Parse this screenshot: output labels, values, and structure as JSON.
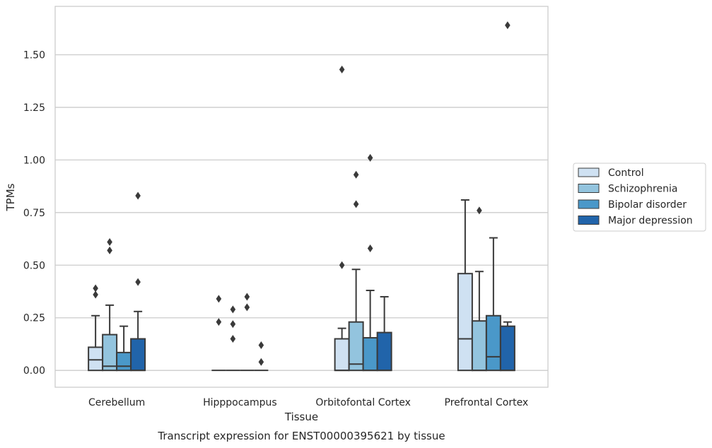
{
  "chart_data": {
    "type": "box",
    "caption": "Transcript expression for ENST00000395621 by tissue",
    "xlabel": "Tissue",
    "ylabel": "TPMs",
    "ylim": [
      -0.08,
      1.73
    ],
    "yticks": [
      0.0,
      0.25,
      0.5,
      0.75,
      1.0,
      1.25,
      1.5
    ],
    "ytick_labels": [
      "0.00",
      "0.25",
      "0.50",
      "0.75",
      "1.00",
      "1.25",
      "1.50"
    ],
    "grid": "horizontal",
    "legend_position": "right",
    "categories": [
      "Cerebellum",
      "Hipppocampus",
      "Orbitofontal Cortex",
      "Prefrontal Cortex"
    ],
    "series": [
      {
        "name": "Control",
        "color": "#cfe1f2",
        "boxes": [
          {
            "whisker_low": 0.0,
            "q1": 0.0,
            "median": 0.05,
            "q3": 0.11,
            "whisker_high": 0.26,
            "outliers": [
              0.36,
              0.39
            ]
          },
          {
            "whisker_low": 0.0,
            "q1": 0.0,
            "median": 0.0,
            "q3": 0.0,
            "whisker_high": 0.0,
            "outliers": [
              0.23,
              0.34
            ]
          },
          {
            "whisker_low": 0.0,
            "q1": 0.0,
            "median": 0.0,
            "q3": 0.15,
            "whisker_high": 0.2,
            "outliers": [
              0.5,
              1.43
            ]
          },
          {
            "whisker_low": 0.0,
            "q1": 0.0,
            "median": 0.15,
            "q3": 0.46,
            "whisker_high": 0.81,
            "outliers": []
          }
        ]
      },
      {
        "name": "Schizophrenia",
        "color": "#93c4de",
        "boxes": [
          {
            "whisker_low": 0.0,
            "q1": 0.0,
            "median": 0.02,
            "q3": 0.17,
            "whisker_high": 0.31,
            "outliers": [
              0.57,
              0.61
            ]
          },
          {
            "whisker_low": 0.0,
            "q1": 0.0,
            "median": 0.0,
            "q3": 0.0,
            "whisker_high": 0.0,
            "outliers": [
              0.15,
              0.22,
              0.29
            ]
          },
          {
            "whisker_low": 0.0,
            "q1": 0.0,
            "median": 0.03,
            "q3": 0.23,
            "whisker_high": 0.48,
            "outliers": [
              0.79,
              0.93
            ]
          },
          {
            "whisker_low": 0.0,
            "q1": 0.0,
            "median": 0.0,
            "q3": 0.235,
            "whisker_high": 0.47,
            "outliers": [
              0.76
            ]
          }
        ]
      },
      {
        "name": "Bipolar disorder",
        "color": "#4a98c9",
        "boxes": [
          {
            "whisker_low": 0.0,
            "q1": 0.0,
            "median": 0.02,
            "q3": 0.085,
            "whisker_high": 0.21,
            "outliers": []
          },
          {
            "whisker_low": 0.0,
            "q1": 0.0,
            "median": 0.0,
            "q3": 0.0,
            "whisker_high": 0.0,
            "outliers": [
              0.3,
              0.35
            ]
          },
          {
            "whisker_low": 0.0,
            "q1": 0.0,
            "median": 0.0,
            "q3": 0.155,
            "whisker_high": 0.38,
            "outliers": [
              0.58,
              1.01
            ]
          },
          {
            "whisker_low": 0.0,
            "q1": 0.0,
            "median": 0.065,
            "q3": 0.26,
            "whisker_high": 0.63,
            "outliers": []
          }
        ]
      },
      {
        "name": "Major depression",
        "color": "#2164aa",
        "boxes": [
          {
            "whisker_low": 0.0,
            "q1": 0.0,
            "median": 0.0,
            "q3": 0.15,
            "whisker_high": 0.28,
            "outliers": [
              0.42,
              0.83
            ]
          },
          {
            "whisker_low": 0.0,
            "q1": 0.0,
            "median": 0.0,
            "q3": 0.0,
            "whisker_high": 0.0,
            "outliers": [
              0.04,
              0.12
            ]
          },
          {
            "whisker_low": 0.0,
            "q1": 0.0,
            "median": 0.0,
            "q3": 0.18,
            "whisker_high": 0.35,
            "outliers": []
          },
          {
            "whisker_low": 0.0,
            "q1": 0.0,
            "median": 0.0,
            "q3": 0.21,
            "whisker_high": 0.23,
            "outliers": [
              1.64
            ]
          }
        ]
      }
    ]
  }
}
